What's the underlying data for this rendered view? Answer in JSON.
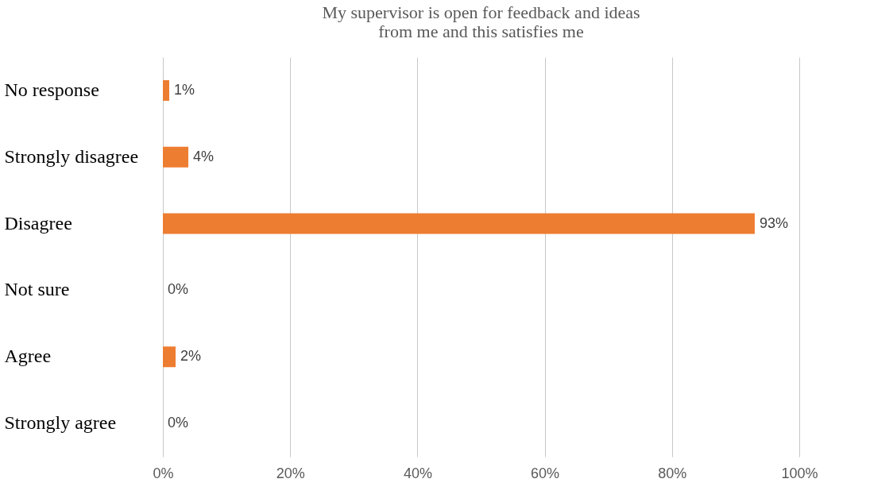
{
  "chart_data": {
    "type": "bar",
    "orientation": "horizontal",
    "title": "My supervisor is open for feedback and ideas\nfrom me and this satisfies me",
    "categories": [
      "No response",
      "Strongly disagree",
      "Disagree",
      "Not sure",
      "Agree",
      "Strongly agree"
    ],
    "values": [
      1,
      4,
      93,
      0,
      2,
      0
    ],
    "value_labels": [
      "1%",
      "4%",
      "93%",
      "0%",
      "2%",
      "0%"
    ],
    "color": "#ed7d31",
    "xlim": [
      0,
      100
    ],
    "xticks": [
      {
        "value": 0,
        "label": "0%"
      },
      {
        "value": 20,
        "label": "20%"
      },
      {
        "value": 40,
        "label": "40%"
      },
      {
        "value": 60,
        "label": "60%"
      },
      {
        "value": 80,
        "label": "80%"
      },
      {
        "value": 100,
        "label": "100%"
      }
    ],
    "grid": "x"
  }
}
